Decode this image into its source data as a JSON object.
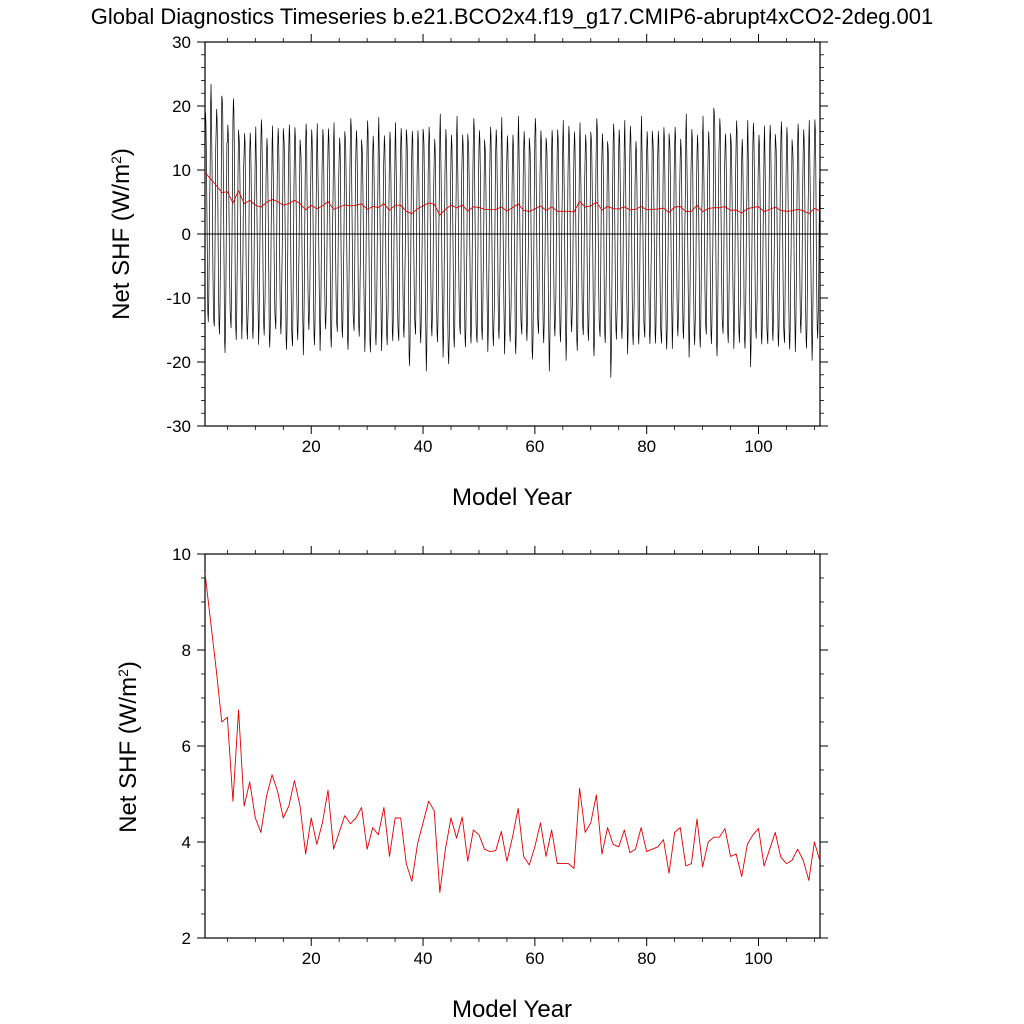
{
  "figure": {
    "title": "Global Diagnostics Timeseries b.e21.BCO2x4.f19_g17.CMIP6-abrupt4xCO2-2deg.001"
  },
  "colors": {
    "monthly": "#000000",
    "annual": "#e00000",
    "axes": "#000000",
    "background": "#ffffff"
  },
  "chart_data": [
    {
      "type": "line",
      "xlabel": "Model Year",
      "ylabel": "Net SHF (W/m2)",
      "xlim": [
        1,
        111
      ],
      "ylim": [
        -30,
        30
      ],
      "xticks": [
        20,
        40,
        60,
        80,
        100
      ],
      "yticks": [
        -30,
        -20,
        -10,
        0,
        10,
        20,
        30
      ],
      "reference_line": 0,
      "grid": false,
      "series": [
        {
          "style": "monthly seasonal cycle, black",
          "color": "#000000",
          "x_start": 1,
          "x_step": 0.08333,
          "amplitude_approx": [
            -21,
            22
          ],
          "seasonal_max": [
            20,
            22,
            19.5,
            22.5,
            16,
            21.5,
            17,
            15,
            16.5,
            15,
            17.5,
            16,
            15.5,
            16.5,
            17,
            16,
            17,
            15.5,
            16.5,
            17,
            15.5,
            16,
            17.5,
            16,
            15,
            16.5,
            17,
            16.5,
            15.5,
            17,
            16,
            16.5,
            15,
            17,
            16,
            16.5,
            17,
            15,
            16.5,
            17.5,
            16,
            15.5,
            17,
            16,
            16.5,
            17,
            15.5,
            16,
            17,
            16.5,
            15.5,
            16,
            17,
            16.5,
            15,
            16.5,
            17,
            16,
            15.5,
            17,
            16.5,
            16,
            15.5,
            17,
            16,
            16.5,
            17,
            16,
            15.5,
            16.5,
            17,
            16,
            15.5,
            16.5,
            17,
            16,
            16.5,
            15.5,
            17,
            16,
            16.5,
            15,
            17,
            16.5,
            16,
            15.5,
            17,
            16,
            16.5,
            17,
            16,
            20.5,
            17,
            16,
            16.5,
            17,
            15.5,
            16,
            17,
            16.5,
            15.5,
            17,
            16,
            16.5,
            17,
            15.5,
            16.5,
            17,
            16,
            17.5
          ],
          "seasonal_min": [
            -13,
            -15.5,
            -16,
            -17.5,
            -15,
            -16.5,
            -15,
            -17.5,
            -16,
            -15.5,
            -16.5,
            -17,
            -15.5,
            -16,
            -17,
            -18,
            -16.5,
            -17.5,
            -16,
            -17,
            -16.5,
            -15.5,
            -17,
            -16,
            -16.5,
            -17,
            -15.5,
            -16,
            -17,
            -19.5,
            -17,
            -16.5,
            -18,
            -16,
            -17.5,
            -16.5,
            -19.5,
            -16,
            -17,
            -20,
            -17,
            -16.5,
            -17.5,
            -21,
            -17,
            -16.5,
            -18,
            -16,
            -17.5,
            -16.5,
            -17,
            -18.5,
            -16,
            -17,
            -17.5,
            -18,
            -16.5,
            -17,
            -18.5,
            -16,
            -17,
            -20,
            -17,
            -16.5,
            -18,
            -16,
            -17.5,
            -16.5,
            -17,
            -18,
            -16.5,
            -17,
            -21,
            -17.5,
            -16,
            -17,
            -18,
            -16.5,
            -17,
            -17.5,
            -16,
            -17.5,
            -18,
            -16.5,
            -17,
            -16,
            -17.5,
            -18,
            -17,
            -16.5,
            -17.5,
            -18,
            -16,
            -17,
            -16.5,
            -18,
            -17.5,
            -19,
            -17,
            -16.5,
            -18,
            -17,
            -16.5,
            -17.5,
            -18,
            -17,
            -16.5,
            -17.5,
            -18,
            -17,
            -18.5
          ]
        },
        {
          "style": "annual mean, red",
          "color": "#e00000",
          "values_ref": "annual_mean"
        }
      ]
    },
    {
      "type": "line",
      "xlabel": "Model Year",
      "ylabel": "Net SHF (W/m2)",
      "xlim": [
        1,
        111
      ],
      "ylim": [
        2,
        10
      ],
      "xticks": [
        20,
        40,
        60,
        80,
        100
      ],
      "yticks": [
        2,
        4,
        6,
        8,
        10
      ],
      "grid": false,
      "series": [
        {
          "color": "#e00000",
          "x_start": 1,
          "values_ref": "annual_mean"
        }
      ]
    }
  ],
  "annual_mean": [
    9.6,
    8.6,
    7.6,
    6.5,
    6.6,
    4.85,
    6.75,
    4.75,
    5.25,
    4.5,
    4.2,
    4.95,
    5.4,
    5.05,
    4.5,
    4.75,
    5.28,
    4.75,
    3.75,
    4.5,
    3.95,
    4.4,
    5.08,
    3.85,
    4.2,
    4.55,
    4.38,
    4.5,
    4.72,
    3.85,
    4.3,
    4.15,
    4.72,
    3.7,
    4.5,
    4.5,
    3.55,
    3.18,
    3.95,
    4.4,
    4.85,
    4.65,
    2.95,
    3.85,
    4.5,
    4.08,
    4.52,
    3.6,
    4.25,
    4.15,
    3.85,
    3.8,
    3.82,
    4.22,
    3.6,
    4.1,
    4.7,
    3.7,
    3.52,
    3.9,
    4.4,
    3.7,
    4.25,
    3.55,
    3.55,
    3.55,
    3.45,
    5.12,
    4.2,
    4.4,
    4.98,
    3.75,
    4.3,
    3.95,
    3.9,
    4.25,
    3.78,
    3.85,
    4.3,
    3.8,
    3.85,
    3.9,
    4.05,
    3.35,
    4.2,
    4.3,
    3.5,
    3.55,
    4.48,
    3.48,
    4.0,
    4.1,
    4.1,
    4.28,
    3.7,
    3.75,
    3.28,
    3.95,
    4.15,
    4.28,
    3.5,
    3.85,
    4.2,
    3.68,
    3.55,
    3.62,
    3.85,
    3.62,
    3.2,
    4.0,
    3.6
  ]
}
